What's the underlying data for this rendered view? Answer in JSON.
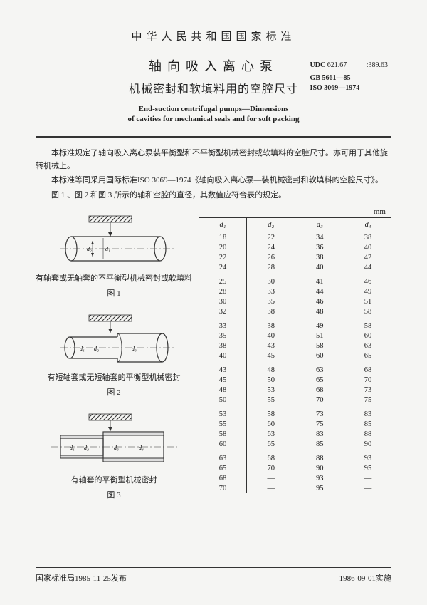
{
  "header": {
    "org": "中华人民共和国国家标准",
    "udc_label": "UDC",
    "udc_value": "621.67           :389.63",
    "gb": "GB 5661—85",
    "iso": "ISO 3069—1974",
    "title_cn": "轴向吸入离心泵",
    "subtitle_cn": "机械密封和软填料用的空腔尺寸",
    "title_en": "End-suction centrifugal pumps—Dimensions",
    "subtitle_en": "of cavities for mechanical seals and for soft packing"
  },
  "body": {
    "p1": "本标准规定了轴向吸入离心泵装平衡型和不平衡型机械密封或软填料的空腔尺寸。亦可用于其他旋转机械上。",
    "p2": "本标准等同采用国际标准ISO 3069—1974《轴向吸入离心泵—装机械密封和软填料的空腔尺寸》。",
    "p3": "图 1 、图 2 和图 3 所示的轴和空腔的直径，其数值应符合表的规定。"
  },
  "figures": {
    "fig1_caption_a": "有轴套或无轴套的不平衡型机械密封或软填料",
    "fig1_caption_b": "图 1",
    "fig2_caption_a": "有短轴套或无短轴套的平衡型机械密封",
    "fig2_caption_b": "图 2",
    "fig3_caption_a": "有轴套的平衡型机械密封",
    "fig3_caption_b": "图 3"
  },
  "table": {
    "unit": "mm",
    "headers": [
      "d₁",
      "d₂",
      "d₃",
      "d₄"
    ],
    "rows": [
      [
        "18",
        "22",
        "34",
        "38"
      ],
      [
        "20",
        "24",
        "36",
        "40"
      ],
      [
        "22",
        "26",
        "38",
        "42"
      ],
      [
        "24",
        "28",
        "40",
        "44"
      ],
      null,
      [
        "25",
        "30",
        "41",
        "46"
      ],
      [
        "28",
        "33",
        "44",
        "49"
      ],
      [
        "30",
        "35",
        "46",
        "51"
      ],
      [
        "32",
        "38",
        "48",
        "58"
      ],
      null,
      [
        "33",
        "38",
        "49",
        "58"
      ],
      [
        "35",
        "40",
        "51",
        "60"
      ],
      [
        "38",
        "43",
        "58",
        "63"
      ],
      [
        "40",
        "45",
        "60",
        "65"
      ],
      null,
      [
        "43",
        "48",
        "63",
        "68"
      ],
      [
        "45",
        "50",
        "65",
        "70"
      ],
      [
        "48",
        "53",
        "68",
        "73"
      ],
      [
        "50",
        "55",
        "70",
        "75"
      ],
      null,
      [
        "53",
        "58",
        "73",
        "83"
      ],
      [
        "55",
        "60",
        "75",
        "85"
      ],
      [
        "58",
        "63",
        "83",
        "88"
      ],
      [
        "60",
        "65",
        "85",
        "90"
      ],
      null,
      [
        "63",
        "68",
        "88",
        "93"
      ],
      [
        "65",
        "70",
        "90",
        "95"
      ],
      [
        "68",
        "—",
        "93",
        "—"
      ],
      [
        "70",
        "—",
        "95",
        "—"
      ]
    ]
  },
  "footer": {
    "left": "国家标准局1985-11-25发布",
    "right": "1986-09-01实施"
  }
}
